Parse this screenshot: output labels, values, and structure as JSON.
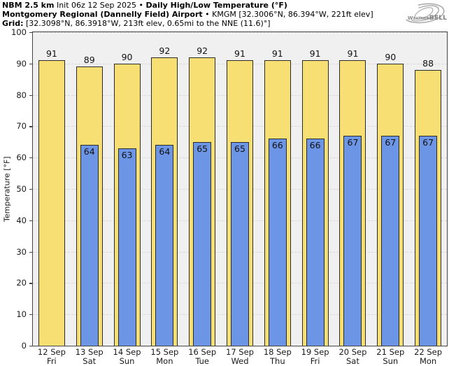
{
  "header": {
    "model": "NBM 2.5 km",
    "init": "Init 06z 12 Sep 2025 •",
    "product": "Daily High/Low Temperature (°F)",
    "station": "Montgomery Regional (Dannelly Field) Airport",
    "station_meta": "• KMGM [32.3006°N, 86.394°W, 221ft elev]",
    "grid_label": "Grid:",
    "grid_meta": "[32.3098°N, 86.3918°W, 213ft elev, 0.65mi to the NNE (11.6)°]"
  },
  "logo": {
    "brand_prefix": "Weather",
    "brand_suffix": "BELL",
    "brand_sub": "Analytics LLC"
  },
  "chart_data": {
    "type": "bar",
    "title": "NBM 2.5 km Init 06z 12 Sep 2025 • Daily High/Low Temperature (°F)",
    "subtitle": "Montgomery Regional (Dannelly Field) Airport • KMGM [32.3006°N, 86.394°W, 221ft elev]",
    "grid_note": "Grid: [32.3098°N, 86.3918°W, 213ft elev, 0.65mi to the NNE (11.6)°]",
    "xlabel": "",
    "ylabel": "Temperature [°F]",
    "ylim": [
      0,
      100
    ],
    "yticks": [
      0,
      10,
      20,
      30,
      40,
      50,
      60,
      70,
      80,
      90,
      100
    ],
    "grid": "horizontal-dashed",
    "legend_position": "none",
    "categories": [
      {
        "date": "12 Sep",
        "day": "Fri"
      },
      {
        "date": "13 Sep",
        "day": "Sat"
      },
      {
        "date": "14 Sep",
        "day": "Sun"
      },
      {
        "date": "15 Sep",
        "day": "Mon"
      },
      {
        "date": "16 Sep",
        "day": "Tue"
      },
      {
        "date": "17 Sep",
        "day": "Wed"
      },
      {
        "date": "18 Sep",
        "day": "Thu"
      },
      {
        "date": "19 Sep",
        "day": "Fri"
      },
      {
        "date": "20 Sep",
        "day": "Sat"
      },
      {
        "date": "21 Sep",
        "day": "Sun"
      },
      {
        "date": "22 Sep",
        "day": "Mon"
      }
    ],
    "series": [
      {
        "name": "Daily High",
        "color": "#f8df73",
        "values": [
          91,
          89,
          90,
          92,
          92,
          91,
          91,
          91,
          91,
          90,
          88
        ]
      },
      {
        "name": "Daily Low",
        "color": "#6c95e6",
        "values": [
          null,
          64,
          63,
          64,
          65,
          65,
          66,
          66,
          67,
          67,
          67
        ]
      }
    ],
    "style": {
      "bar_border": "#2b2b2b",
      "plot_bg": "#f0f0f0",
      "grid_color": "#d7d7d7",
      "spine_color": "#444444",
      "label_color": "#111111",
      "logo_gray": "#a9a9a9"
    }
  }
}
